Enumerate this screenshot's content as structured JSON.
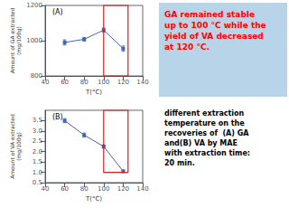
{
  "chart_data": [
    {
      "type": "line",
      "marker": "square",
      "color": "#4466aa",
      "x": [
        60,
        80,
        100,
        120
      ],
      "values": [
        990,
        1008,
        1060,
        955
      ],
      "errors": [
        15,
        10,
        12,
        15
      ],
      "xlim": [
        40,
        140
      ],
      "xticks": [
        40,
        60,
        80,
        100,
        120,
        140
      ],
      "ylim": [
        800,
        1200
      ],
      "yticks": [
        800,
        1000,
        1200
      ],
      "xlabel": "T(°C)",
      "ylabel": "Amount of GA extracted\n(mg/100g)",
      "annotation": "(A)",
      "grid": false,
      "highlight": {
        "x": 100,
        "y": 800,
        "width": 25,
        "height": 400,
        "color": "#cc2222"
      }
    },
    {
      "type": "line",
      "marker": "square",
      "color": "#4466aa",
      "x": [
        60,
        80,
        100,
        120
      ],
      "values": [
        3.5,
        2.8,
        2.25,
        1.05
      ],
      "errors": [
        0.1,
        0.1,
        0.08,
        0.06
      ],
      "xlim": [
        40,
        140
      ],
      "xticks": [
        40,
        60,
        80,
        100,
        120,
        140
      ],
      "ylim": [
        0.5,
        4.0
      ],
      "yticks": [
        0.5,
        {
          "value": 1.0,
          "label": "1.0"
        },
        1.5,
        {
          "value": 2.0,
          "label": "2.0"
        },
        2.5,
        {
          "value": 3.0,
          "label": "3.0"
        },
        3.5
      ],
      "xlabel": "T(°C)",
      "ylabel": "Amount of VA extracted\n(mg/100g)",
      "annotation": "(B)",
      "grid": false,
      "highlight": {
        "x": 100,
        "y": 1.0,
        "width": 25,
        "height": 3.0,
        "color": "#cc2222"
      }
    }
  ],
  "annotations": [
    {
      "text": "GA remained stable\nup to 100 °C while the\nyield of VA decreased\nat 120 °C.",
      "color": "red"
    },
    {
      "text": "different extraction\ntemperature on the\nrecoveries of  (A) GA\nand(B) VA by MAE\nwith extraction time:\n20 min.",
      "color": "black"
    }
  ]
}
